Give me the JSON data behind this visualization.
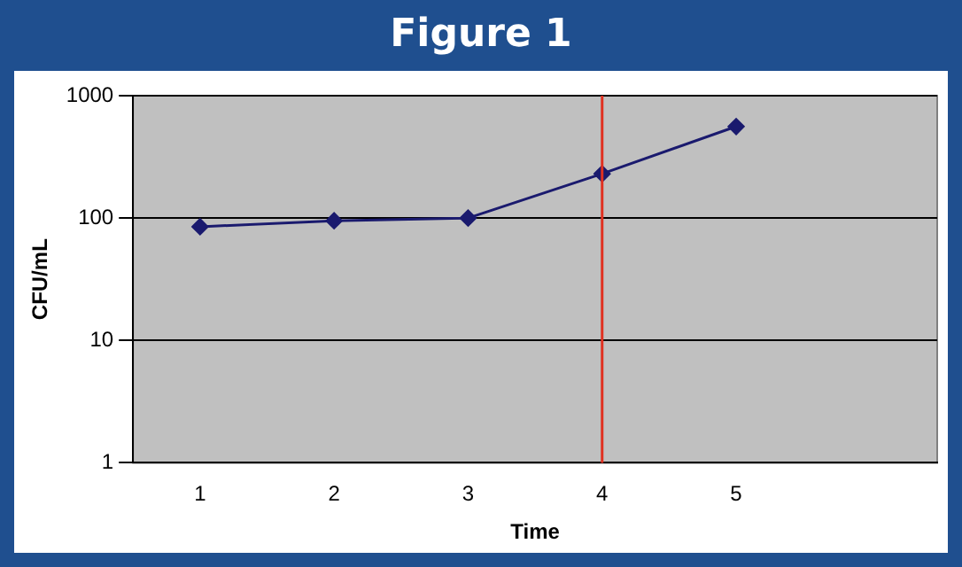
{
  "chart_data": {
    "type": "line",
    "title": "Figure 1",
    "xlabel": "Time",
    "ylabel": "CFU/mL",
    "x": [
      1,
      2,
      3,
      4,
      5
    ],
    "series": [
      {
        "color": "#1a1a6e",
        "values": [
          85,
          95,
          100,
          230,
          560
        ]
      }
    ],
    "xlim": [
      0.5,
      6.5
    ],
    "xticks": [
      1,
      2,
      3,
      4,
      5
    ],
    "ylim": [
      1,
      1000
    ],
    "yticks": [
      1,
      10,
      100,
      1000
    ],
    "log": "y",
    "grid": "y",
    "legend": false,
    "marker": "diamond",
    "line_style": "solid",
    "ref_lines": [
      {
        "axis": "x",
        "value": 4,
        "color": "#e03020"
      }
    ]
  }
}
